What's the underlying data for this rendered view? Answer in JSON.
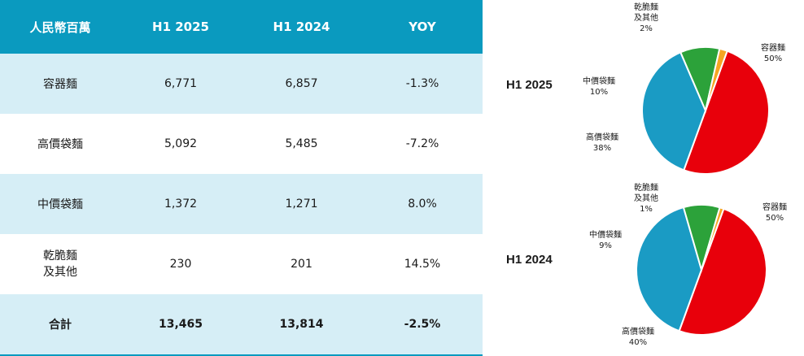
{
  "table": {
    "headers": [
      "人民幣百萬",
      "H1 2025",
      "H1 2024",
      "YOY"
    ],
    "rows": [
      {
        "category": "容器麵",
        "h1_2025": "6,771",
        "h1_2024": "6,857",
        "yoy": "-1.3%"
      },
      {
        "category": "高價袋麵",
        "h1_2025": "5,092",
        "h1_2024": "5,485",
        "yoy": "-7.2%"
      },
      {
        "category": "中價袋麵",
        "h1_2025": "1,372",
        "h1_2024": "1,271",
        "yoy": "8.0%"
      },
      {
        "category": "乾脆麵\n及其他",
        "h1_2025": "230",
        "h1_2024": "201",
        "yoy": "14.5%"
      }
    ],
    "total": {
      "category": "合計",
      "h1_2025": "13,465",
      "h1_2024": "13,814",
      "yoy": "-2.5%"
    }
  },
  "chart_data": [
    {
      "type": "pie",
      "title": "H1 2025",
      "categories": [
        "容器麵",
        "高價袋麵",
        "中價袋麵",
        "乾脆麵\n及其他"
      ],
      "values": [
        50,
        38,
        10,
        2
      ],
      "value_labels": [
        "50%",
        "38%",
        "10%",
        "2%"
      ],
      "colors": [
        "#e8000b",
        "#1a9bc4",
        "#2ca23a",
        "#f5a623"
      ]
    },
    {
      "type": "pie",
      "title": "H1 2024",
      "categories": [
        "容器麵",
        "高價袋麵",
        "中價袋麵",
        "乾脆麵\n及其他"
      ],
      "values": [
        50,
        40,
        9,
        1
      ],
      "value_labels": [
        "50%",
        "40%",
        "9%",
        "1%"
      ],
      "colors": [
        "#e8000b",
        "#1a9bc4",
        "#2ca23a",
        "#f5a623"
      ]
    }
  ]
}
